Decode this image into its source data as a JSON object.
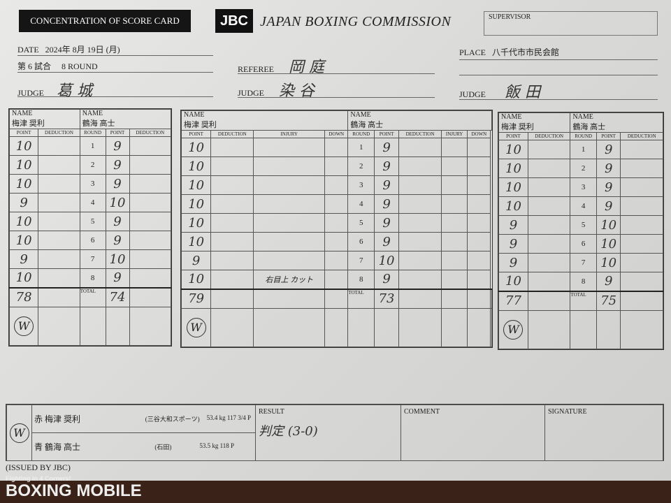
{
  "header": {
    "card_title": "CONCENTRATION OF SCORE CARD",
    "logo": "JBC",
    "commission": "JAPAN BOXING COMMISSION",
    "supervisor_label": "SUPERVISOR"
  },
  "info": {
    "date_label": "DATE",
    "date": "2024年 8月 19日 (月)",
    "bout": "第 6 試合",
    "rounds": "8 ROUND",
    "place_label": "PLACE",
    "place": "八千代市市民会館",
    "referee_label": "REFEREE",
    "referee": "岡 庭",
    "judge_label": "JUDGE"
  },
  "labels": {
    "name": "NAME",
    "point": "POINT",
    "deduction": "DEDUCTION",
    "round": "ROUND",
    "injury": "INJURY",
    "down": "DOWN",
    "total": "TOTAL"
  },
  "judges": [
    {
      "name": "葛 城",
      "red": "梅津 奨利",
      "blue": "鶴海 高士",
      "red_points": [
        "10",
        "10",
        "10",
        "9",
        "10",
        "10",
        "9",
        "10"
      ],
      "blue_points": [
        "9",
        "9",
        "9",
        "10",
        "9",
        "9",
        "10",
        "9"
      ],
      "red_total": "78",
      "blue_total": "74",
      "winner_mark": "W",
      "injury": [
        "",
        "",
        "",
        "",
        "",
        "",
        "",
        ""
      ]
    },
    {
      "name": "染 谷",
      "red": "梅津 奨利",
      "blue": "鶴海 高士",
      "red_points": [
        "10",
        "10",
        "10",
        "10",
        "10",
        "10",
        "9",
        "10"
      ],
      "blue_points": [
        "9",
        "9",
        "9",
        "9",
        "9",
        "9",
        "10",
        "9"
      ],
      "red_total": "79",
      "blue_total": "73",
      "winner_mark": "W",
      "injury": [
        "",
        "",
        "",
        "",
        "",
        "",
        "",
        "右目上 カット"
      ]
    },
    {
      "name": "飯 田",
      "red": "梅津 奨利",
      "blue": "鶴海 高士",
      "red_points": [
        "10",
        "10",
        "10",
        "10",
        "9",
        "9",
        "9",
        "10"
      ],
      "blue_points": [
        "9",
        "9",
        "9",
        "9",
        "10",
        "10",
        "10",
        "9"
      ],
      "red_total": "77",
      "blue_total": "75",
      "winner_mark": "W",
      "injury": [
        "",
        "",
        "",
        "",
        "",
        "",
        "",
        ""
      ]
    }
  ],
  "rounds": [
    "1",
    "2",
    "3",
    "4",
    "5",
    "6",
    "7",
    "8"
  ],
  "summary": {
    "winner_mark": "W",
    "red": "赤 梅津 奨利",
    "red_gym": "(三谷大和スポーツ)",
    "red_weight": "53.4 kg 117 3/4 P",
    "blue": "青 鶴海 高士",
    "blue_gym": "(石田)",
    "blue_weight": "53.5 kg 118 P",
    "result_label": "RESULT",
    "result": "判定 (3-0)",
    "comment_label": "COMMENT",
    "signature_label": "SIGNATURE"
  },
  "footer": {
    "issued": "(ISSUED BY JBC)",
    "watermark": "BOXING MOBILE",
    "watermark_tag": "Fighting in 4 Corners!"
  }
}
